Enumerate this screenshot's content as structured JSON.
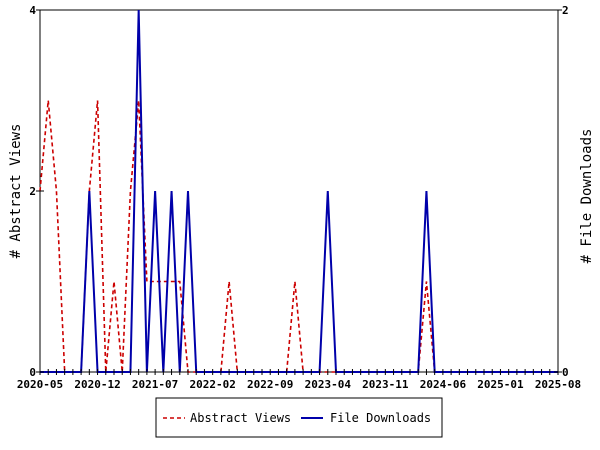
{
  "chart_data": {
    "type": "line",
    "x": [
      "2020-05",
      "2020-06",
      "2020-07",
      "2020-08",
      "2020-09",
      "2020-10",
      "2020-11",
      "2020-12",
      "2021-01",
      "2021-02",
      "2021-03",
      "2021-04",
      "2021-05",
      "2021-06",
      "2021-07",
      "2021-08",
      "2021-09",
      "2021-10",
      "2021-11",
      "2021-12",
      "2022-01",
      "2022-02",
      "2022-03",
      "2022-04",
      "2022-05",
      "2022-06",
      "2022-07",
      "2022-08",
      "2022-09",
      "2022-10",
      "2022-11",
      "2022-12",
      "2023-01",
      "2023-02",
      "2023-03",
      "2023-04",
      "2023-05",
      "2023-06",
      "2023-07",
      "2023-08",
      "2023-09",
      "2023-10",
      "2023-11",
      "2023-12",
      "2024-01",
      "2024-02",
      "2024-03",
      "2024-04",
      "2024-05",
      "2024-06",
      "2024-07",
      "2024-08",
      "2024-09",
      "2024-10",
      "2024-11",
      "2024-12",
      "2025-01",
      "2025-02",
      "2025-03",
      "2025-04",
      "2025-05",
      "2025-06",
      "2025-07",
      "2025-08"
    ],
    "series": [
      {
        "name": "Abstract Views",
        "axis": "left",
        "color": "#cc0000",
        "dash": "dashed",
        "values": [
          2,
          3,
          2,
          0,
          0,
          0,
          2,
          3,
          0,
          1,
          0,
          2,
          3,
          1,
          1,
          1,
          1,
          1,
          0,
          0,
          0,
          0,
          0,
          1,
          0,
          0,
          0,
          0,
          0,
          0,
          0,
          1,
          0,
          0,
          0,
          0,
          0,
          0,
          0,
          0,
          0,
          0,
          0,
          0,
          0,
          0,
          0,
          1,
          0,
          0,
          0,
          0,
          0,
          0,
          0,
          0,
          0,
          0,
          0,
          0,
          0,
          0,
          0,
          0
        ]
      },
      {
        "name": "File Downloads",
        "axis": "right",
        "color": "#0000aa",
        "dash": "solid",
        "values": [
          0,
          0,
          0,
          0,
          0,
          0,
          1,
          0,
          0,
          0,
          0,
          0,
          2,
          0,
          1,
          0,
          1,
          0,
          1,
          0,
          0,
          0,
          0,
          0,
          0,
          0,
          0,
          0,
          0,
          0,
          0,
          0,
          0,
          0,
          0,
          1,
          0,
          0,
          0,
          0,
          0,
          0,
          0,
          0,
          0,
          0,
          0,
          1,
          0,
          0,
          0,
          0,
          0,
          0,
          0,
          0,
          0,
          0,
          0,
          0,
          0,
          0,
          0,
          0
        ]
      }
    ],
    "x_tick_labels": [
      "2020-05",
      "2020-12",
      "2021-07",
      "2022-02",
      "2022-09",
      "2023-04",
      "2023-11",
      "2024-06",
      "2025-01",
      "2025-08"
    ],
    "y_left_label": "# Abstract Views",
    "y_left_ticks": [
      "0",
      "2",
      "4"
    ],
    "y_left_lim": [
      0,
      4
    ],
    "y_right_label": "# File Downloads",
    "y_right_ticks": [
      "0",
      "2"
    ],
    "y_right_lim": [
      0,
      2
    ],
    "grid": false,
    "legend_position": "bottom-center"
  }
}
